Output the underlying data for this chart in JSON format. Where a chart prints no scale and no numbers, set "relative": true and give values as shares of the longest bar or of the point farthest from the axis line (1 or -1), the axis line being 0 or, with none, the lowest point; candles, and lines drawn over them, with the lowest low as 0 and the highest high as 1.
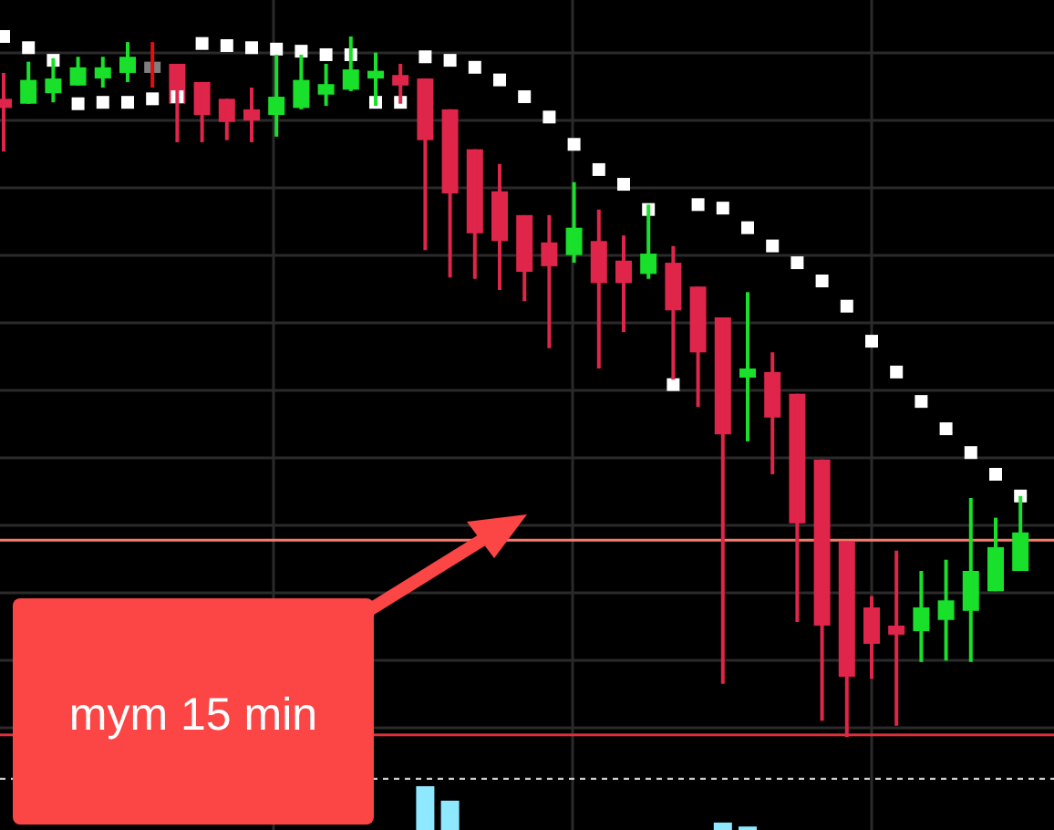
{
  "chart_data": [
    {
      "type": "candlestick",
      "relative": true,
      "grid": true,
      "categories": [
        null,
        null,
        null,
        null,
        null,
        null,
        null,
        null,
        null,
        null,
        null,
        null,
        null,
        null,
        null,
        null,
        null,
        null,
        null,
        null,
        null,
        null,
        null,
        null,
        null,
        null,
        null,
        null,
        null,
        null,
        null,
        null,
        null,
        null,
        null,
        null,
        null,
        null,
        null,
        null,
        null,
        null
      ],
      "ohlc": [
        [
          0.911,
          0.948,
          0.836,
          0.898
        ],
        [
          0.904,
          0.964,
          0.904,
          0.938
        ],
        [
          0.919,
          0.969,
          0.906,
          0.94
        ],
        [
          0.93,
          0.971,
          0.93,
          0.956
        ],
        [
          0.94,
          0.971,
          0.927,
          0.956
        ],
        [
          0.948,
          0.992,
          0.935,
          0.971
        ],
        [
          0.948,
          0.992,
          0.927,
          0.964
        ],
        [
          0.961,
          0.961,
          0.849,
          0.904
        ],
        [
          0.935,
          0.935,
          0.849,
          0.888
        ],
        [
          0.911,
          0.911,
          0.852,
          0.878
        ],
        [
          0.896,
          0.927,
          0.849,
          0.88
        ],
        [
          0.888,
          0.974,
          0.857,
          0.914
        ],
        [
          0.898,
          0.974,
          0.896,
          0.938
        ],
        [
          0.917,
          0.961,
          0.901,
          0.932
        ],
        [
          0.924,
          1,
          0.922,
          0.953
        ],
        [
          0.94,
          0.977,
          0.901,
          0.951
        ],
        [
          0.945,
          0.961,
          0.904,
          0.93
        ],
        [
          0.94,
          0.94,
          0.695,
          0.852
        ],
        [
          0.896,
          0.896,
          0.656,
          0.776
        ],
        [
          0.839,
          0.839,
          0.654,
          0.719
        ],
        [
          0.779,
          0.818,
          0.638,
          0.708
        ],
        [
          0.745,
          0.745,
          0.622,
          0.664
        ],
        [
          0.706,
          0.745,
          0.555,
          0.672
        ],
        [
          0.688,
          0.792,
          0.677,
          0.727
        ],
        [
          0.708,
          0.753,
          0.526,
          0.648
        ],
        [
          0.68,
          0.716,
          0.578,
          0.648
        ],
        [
          0.661,
          0.76,
          0.654,
          0.69
        ],
        [
          0.677,
          0.701,
          0.51,
          0.609
        ],
        [
          0.643,
          0.643,
          0.471,
          0.549
        ],
        [
          0.599,
          0.599,
          0.076,
          0.432
        ],
        [
          0.513,
          0.635,
          0.422,
          0.526
        ],
        [
          0.521,
          0.549,
          0.375,
          0.456
        ],
        [
          0.49,
          0.49,
          0.164,
          0.305
        ],
        [
          0.396,
          0.396,
          0.023,
          0.159
        ],
        [
          0.279,
          0.279,
          0,
          0.086
        ],
        [
          0.185,
          0.201,
          0.083,
          0.133
        ],
        [
          0.159,
          0.266,
          0.016,
          0.146
        ],
        [
          0.151,
          0.237,
          0.107,
          0.185
        ],
        [
          0.167,
          0.253,
          0.109,
          0.195
        ],
        [
          0.18,
          0.341,
          0.107,
          0.237
        ],
        [
          0.208,
          0.313,
          0.208,
          0.271
        ],
        [
          0.237,
          0.344,
          0.237,
          0.292
        ]
      ],
      "colors": [
        "#e0254a",
        "#19e02a",
        "#19e02a",
        "#19e02a",
        "#19e02a",
        "#19e02a",
        "#7f7f7f",
        "#e0254a",
        "#e0254a",
        "#e0254a",
        "#e0254a",
        "#19e02a",
        "#19e02a",
        "#19e02a",
        "#19e02a",
        "#19e02a",
        "#e0254a",
        "#e0254a",
        "#e0254a",
        "#e0254a",
        "#e0254a",
        "#e0254a",
        "#e0254a",
        "#19e02a",
        "#e0254a",
        "#e0254a",
        "#19e02a",
        "#e0254a",
        "#e0254a",
        "#e0254a",
        "#19e02a",
        "#e0254a",
        "#e0254a",
        "#e0254a",
        "#e0254a",
        "#e0254a",
        "#e0254a",
        "#19e02a",
        "#19e02a",
        "#19e02a",
        "#19e02a",
        "#19e02a"
      ],
      "series": [
        {
          "type": "scatter",
          "color": "#ffffff",
          "marker": "square",
          "values": [
            1,
            0.984,
            0.966,
            0.904,
            0.906,
            0.906,
            0.911,
            0.914,
            0.99,
            0.987,
            0.984,
            0.982,
            0.979,
            0.974,
            0.974,
            0.906,
            0.906,
            0.971,
            0.966,
            0.956,
            0.938,
            0.914,
            0.885,
            0.846,
            0.81,
            0.789,
            0.753,
            0.503,
            0.76,
            0.755,
            0.727,
            0.701,
            0.677,
            0.651,
            0.615,
            0.565,
            0.521,
            0.479,
            0.44,
            0.406,
            0.375,
            0.344
          ]
        }
      ],
      "ref_lines": [
        {
          "axis": "y",
          "value": 0.281,
          "color": "#f47a6a",
          "line_style": "solid"
        },
        {
          "axis": "y",
          "value": 0.003,
          "color": "#e0303a",
          "line_style": "solid"
        }
      ],
      "annotations": [
        "mym 15 min"
      ]
    },
    {
      "type": "bar",
      "relative": true,
      "grid": "x",
      "color": "#8ee8ff",
      "categories": [
        null,
        null,
        null,
        null,
        null,
        null,
        null,
        null,
        null,
        null,
        null,
        null,
        null,
        null,
        null,
        null,
        null,
        null,
        null,
        null,
        null,
        null,
        null,
        null,
        null,
        null,
        null,
        null,
        null,
        null,
        null,
        null,
        null,
        null,
        null,
        null,
        null,
        null,
        null,
        null,
        null,
        null
      ],
      "values": [
        null,
        null,
        null,
        null,
        null,
        null,
        null,
        null,
        null,
        null,
        null,
        null,
        null,
        null,
        null,
        null,
        null,
        1,
        0.67,
        null,
        null,
        null,
        null,
        null,
        null,
        null,
        null,
        null,
        null,
        0.17,
        0.08,
        null,
        null,
        null,
        null,
        null,
        null,
        null,
        null,
        null,
        null,
        null
      ],
      "ref_lines": [
        {
          "axis": "y",
          "value": 1.17,
          "color": "#cccccc",
          "line_style": "dashed"
        }
      ]
    }
  ]
}
